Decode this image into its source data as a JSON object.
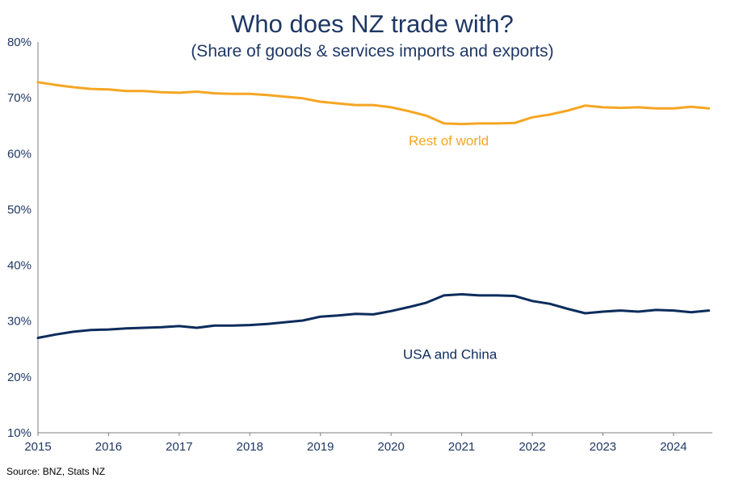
{
  "chart_data": {
    "type": "line",
    "title": "Who does NZ trade with?",
    "subtitle": "(Share of goods & services imports and exports)",
    "source": "Source: BNZ, Stats NZ",
    "x_axis": {
      "min": 2015,
      "max": 2024.55,
      "tick_values": [
        2015,
        2016,
        2017,
        2018,
        2019,
        2020,
        2021,
        2022,
        2023,
        2024
      ],
      "tick_labels": [
        "2015",
        "2016",
        "2017",
        "2018",
        "2019",
        "2020",
        "2021",
        "2022",
        "2023",
        "2024"
      ]
    },
    "y_axis": {
      "min": 10,
      "max": 80,
      "tick_values": [
        10,
        20,
        30,
        40,
        50,
        60,
        70,
        80
      ],
      "tick_labels": [
        "10%",
        "20%",
        "30%",
        "40%",
        "50%",
        "60%",
        "70%",
        "80%"
      ]
    },
    "grid": false,
    "x": [
      2015.0,
      2015.25,
      2015.5,
      2015.75,
      2016.0,
      2016.25,
      2016.5,
      2016.75,
      2017.0,
      2017.25,
      2017.5,
      2017.75,
      2018.0,
      2018.25,
      2018.5,
      2018.75,
      2019.0,
      2019.25,
      2019.5,
      2019.75,
      2020.0,
      2020.25,
      2020.5,
      2020.75,
      2021.0,
      2021.25,
      2021.5,
      2021.75,
      2022.0,
      2022.25,
      2022.5,
      2022.75,
      2023.0,
      2023.25,
      2023.5,
      2023.75,
      2024.0,
      2024.25,
      2024.5
    ],
    "series": [
      {
        "name": "Rest of world",
        "color": "#f5a623",
        "values": [
          72.8,
          72.3,
          71.9,
          71.6,
          71.5,
          71.2,
          71.2,
          71.0,
          70.9,
          71.1,
          70.8,
          70.7,
          70.7,
          70.5,
          70.2,
          69.9,
          69.3,
          69.0,
          68.7,
          68.7,
          68.3,
          67.6,
          66.8,
          65.4,
          65.3,
          65.4,
          65.4,
          65.5,
          66.5,
          67.0,
          67.7,
          68.6,
          68.3,
          68.2,
          68.3,
          68.1,
          68.1,
          68.4,
          68.1
        ],
        "label": "Rest of world",
        "label_x": 2020.25,
        "label_y": 61.5
      },
      {
        "name": "USA and China",
        "color": "#0c2c5c",
        "values": [
          27.0,
          27.6,
          28.1,
          28.4,
          28.5,
          28.7,
          28.8,
          28.9,
          29.1,
          28.8,
          29.2,
          29.2,
          29.3,
          29.5,
          29.8,
          30.1,
          30.8,
          31.0,
          31.3,
          31.2,
          31.8,
          32.5,
          33.3,
          34.6,
          34.8,
          34.6,
          34.6,
          34.5,
          33.6,
          33.1,
          32.2,
          31.4,
          31.7,
          31.9,
          31.7,
          32.0,
          31.9,
          31.6,
          31.9
        ],
        "label": "USA and China",
        "label_x": 2020.17,
        "label_y": 23.2
      }
    ]
  }
}
